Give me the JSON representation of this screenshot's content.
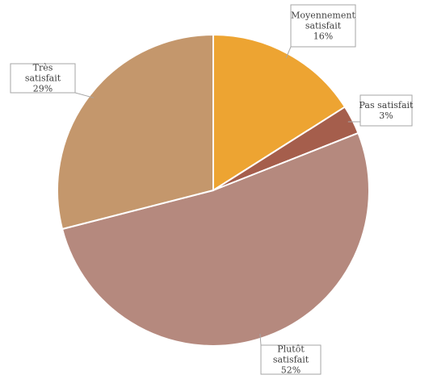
{
  "chart_data": {
    "type": "pie",
    "title": "",
    "slices": [
      {
        "label": "Moyennement satisfait",
        "value": 16,
        "percent_label": "16%",
        "color": "#eda432"
      },
      {
        "label": "Pas satisfait",
        "value": 3,
        "percent_label": "3%",
        "color": "#a55e4c"
      },
      {
        "label": "Plutôt satisfait",
        "value": 52,
        "percent_label": "52%",
        "color": "#b5897e"
      },
      {
        "label": "Très satisfait",
        "value": 29,
        "percent_label": "29%",
        "color": "#c4976c"
      }
    ],
    "legend": "none",
    "data_labels": "callouts"
  }
}
